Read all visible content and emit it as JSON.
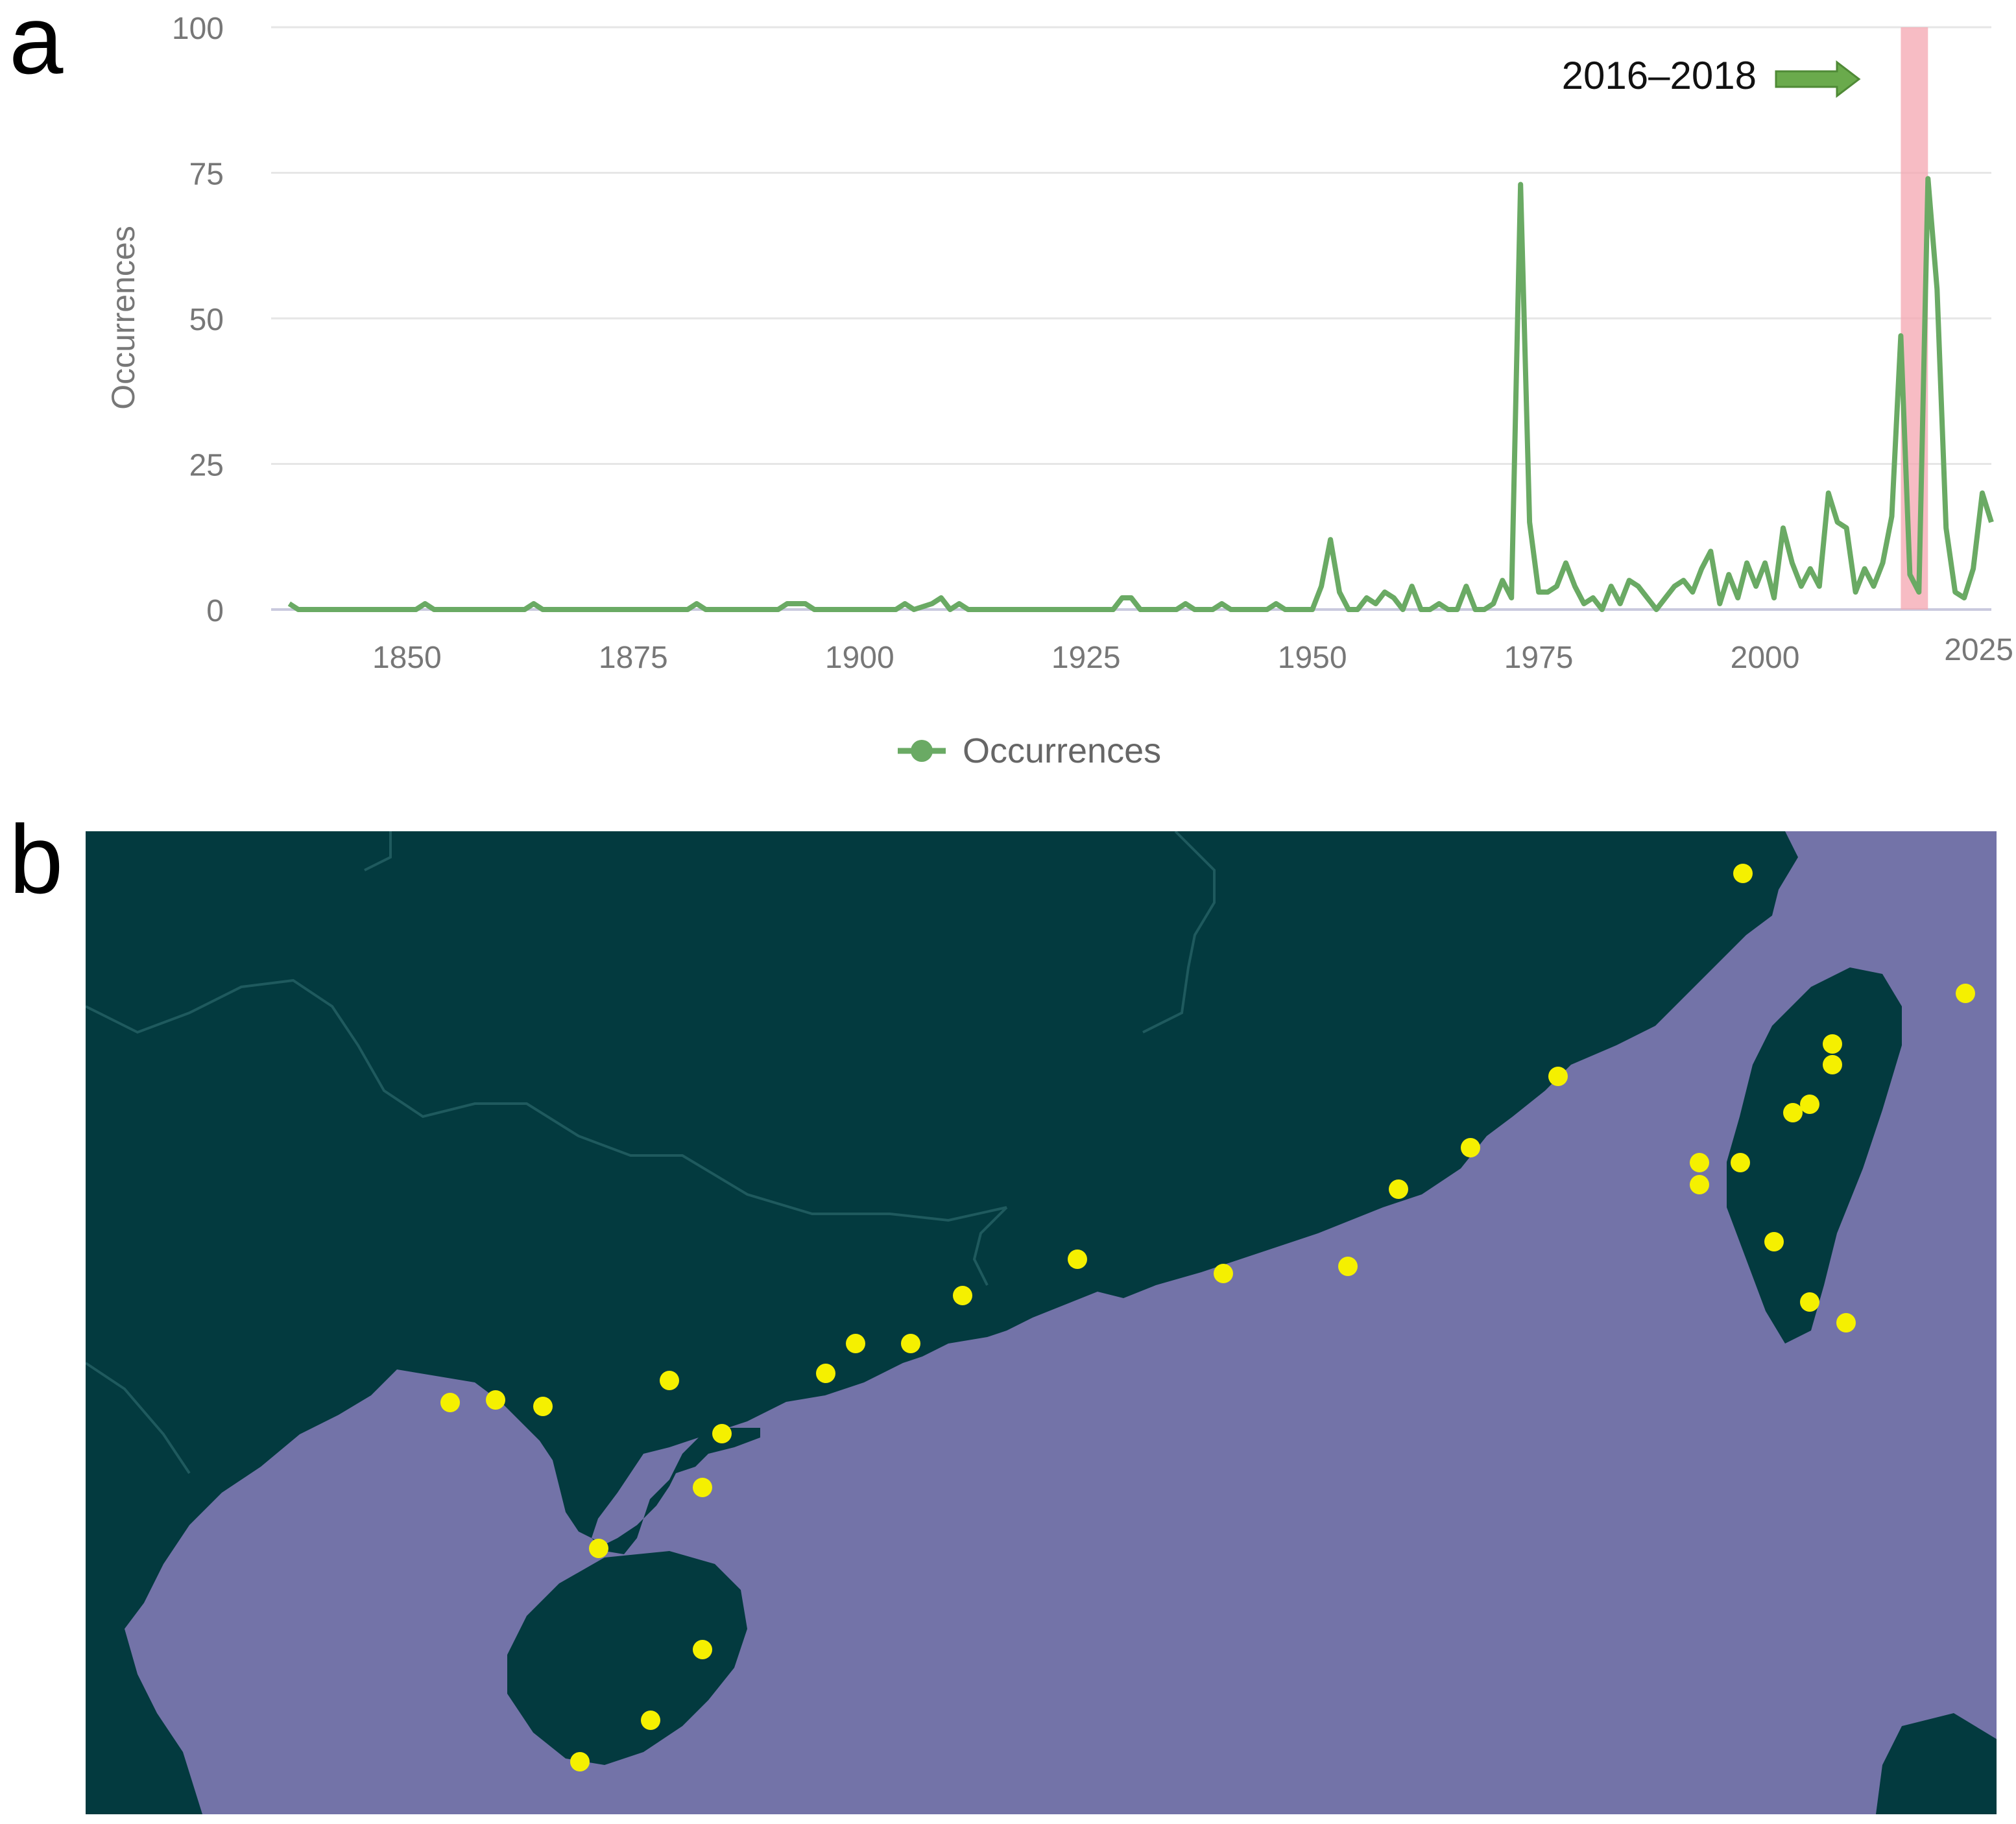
{
  "panels": {
    "a": "a",
    "b": "b"
  },
  "chart_data": {
    "type": "line",
    "title": "",
    "xlabel": "",
    "ylabel": "Occurrences",
    "xlim": [
      1835,
      2025
    ],
    "ylim": [
      0,
      100
    ],
    "xticks": [
      1850,
      1875,
      1900,
      1925,
      1950,
      1975,
      2000,
      2025
    ],
    "yticks": [
      0,
      25,
      50,
      75,
      100
    ],
    "grid": true,
    "legend_position": "bottom-center",
    "annotation": {
      "text": "2016–2018",
      "range": [
        2015,
        2018
      ],
      "color": "#f4a6b0",
      "arrow_color": "#6aaa4c"
    },
    "series": [
      {
        "name": "Occurrences",
        "color": "#6aaa64",
        "x": [
          1837,
          1838,
          1851,
          1852,
          1853,
          1863,
          1864,
          1865,
          1881,
          1882,
          1883,
          1891,
          1892,
          1893,
          1894,
          1895,
          1904,
          1905,
          1906,
          1908,
          1909,
          1910,
          1911,
          1912,
          1913,
          1928,
          1929,
          1930,
          1931,
          1935,
          1936,
          1937,
          1939,
          1940,
          1941,
          1945,
          1946,
          1947,
          1950,
          1951,
          1952,
          1953,
          1954,
          1955,
          1956,
          1957,
          1958,
          1959,
          1960,
          1961,
          1962,
          1963,
          1964,
          1965,
          1966,
          1967,
          1968,
          1969,
          1970,
          1971,
          1972,
          1973,
          1974,
          1975,
          1976,
          1977,
          1978,
          1979,
          1980,
          1981,
          1982,
          1983,
          1984,
          1985,
          1986,
          1987,
          1988,
          1989,
          1990,
          1991,
          1992,
          1993,
          1994,
          1995,
          1996,
          1997,
          1998,
          1999,
          2000,
          2001,
          2002,
          2003,
          2004,
          2005,
          2006,
          2007,
          2008,
          2009,
          2010,
          2011,
          2012,
          2013,
          2014,
          2015,
          2016,
          2017,
          2018,
          2019,
          2020,
          2021,
          2022,
          2023,
          2024,
          2025
        ],
        "values": [
          1,
          0,
          0,
          1,
          0,
          0,
          1,
          0,
          0,
          1,
          0,
          0,
          1,
          1,
          1,
          0,
          0,
          1,
          0,
          1,
          2,
          0,
          1,
          0,
          0,
          0,
          2,
          2,
          0,
          0,
          1,
          0,
          0,
          1,
          0,
          0,
          1,
          0,
          0,
          4,
          12,
          3,
          0,
          0,
          2,
          1,
          3,
          2,
          0,
          4,
          0,
          0,
          1,
          0,
          0,
          4,
          0,
          0,
          1,
          5,
          2,
          73,
          15,
          3,
          3,
          4,
          8,
          4,
          1,
          2,
          0,
          4,
          1,
          5,
          4,
          2,
          0,
          2,
          4,
          5,
          3,
          7,
          10,
          1,
          6,
          2,
          8,
          4,
          8,
          2,
          14,
          8,
          4,
          7,
          4,
          20,
          15,
          14,
          3,
          7,
          4,
          8,
          16,
          47,
          6,
          3,
          74,
          55,
          14,
          3,
          2,
          7,
          20,
          15
        ]
      }
    ]
  },
  "map": {
    "land_color": "#033a3f",
    "sea_color": "#7373a8",
    "border_color": "#1f5a5e",
    "marker_color": "#f5f000"
  }
}
